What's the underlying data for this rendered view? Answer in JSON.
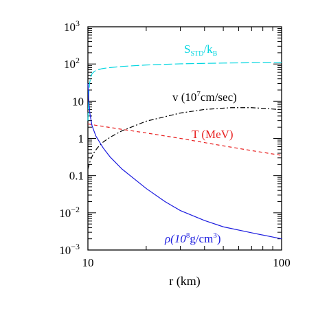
{
  "chart_data": {
    "type": "line",
    "xscale": "log",
    "yscale": "log",
    "xlim": [
      10,
      100
    ],
    "ylim": [
      0.001,
      1000
    ],
    "xlabel": "r (km)",
    "ylabel": "",
    "title": "",
    "grid": false,
    "x_tick_labels": [
      {
        "value": 10,
        "label": "10"
      },
      {
        "value": 100,
        "label": "100"
      }
    ],
    "y_tick_labels": [
      {
        "value": 0.001,
        "base": "10",
        "exp": "−3"
      },
      {
        "value": 0.01,
        "base": "10",
        "exp": "−2"
      },
      {
        "value": 0.1,
        "base": "0.1",
        "exp": ""
      },
      {
        "value": 1,
        "base": "1",
        "exp": ""
      },
      {
        "value": 10,
        "base": "10",
        "exp": ""
      },
      {
        "value": 100,
        "base": "10",
        "exp": "2"
      },
      {
        "value": 1000,
        "base": "10",
        "exp": "3"
      }
    ],
    "series": [
      {
        "key": "entropy",
        "label": {
          "main": "S",
          "sub1": "STD",
          "mid": "/k",
          "sub2": "B"
        },
        "color": "#00d6e0",
        "dash": "long-dash",
        "x": [
          10.0,
          10.1,
          10.2,
          10.35,
          10.5,
          10.75,
          11.0,
          11.5,
          12,
          13,
          15,
          20,
          30,
          50,
          70,
          100
        ],
        "y": [
          3.0,
          15,
          30,
          45,
          55,
          62,
          67,
          72,
          76,
          80,
          86,
          94,
          101,
          106,
          108,
          109
        ]
      },
      {
        "key": "velocity",
        "label": {
          "main": "v  (10",
          "sup": "7",
          "rest": "cm/sec)"
        },
        "color": "#000000",
        "dash": "dash-dot",
        "x": [
          10.0,
          10.3,
          10.7,
          11.2,
          12,
          13,
          15,
          20,
          30,
          40,
          55,
          70,
          85,
          100
        ],
        "y": [
          0.15,
          0.26,
          0.4,
          0.56,
          0.8,
          1.07,
          1.6,
          2.9,
          4.8,
          6.0,
          6.7,
          6.7,
          6.3,
          5.9
        ]
      },
      {
        "key": "temperature",
        "label": {
          "main": "T  (MeV)"
        },
        "color": "#e81e1e",
        "dash": "short-dash",
        "x": [
          10.0,
          10.5,
          11,
          12,
          15,
          20,
          30,
          50,
          70,
          100
        ],
        "y": [
          2.45,
          2.35,
          2.25,
          2.1,
          1.75,
          1.4,
          1.0,
          0.63,
          0.47,
          0.35
        ]
      },
      {
        "key": "density",
        "label": {
          "main": "ρ(10",
          "sup": "8",
          "rest": "g/cm",
          "sup2": "3",
          "end": ")"
        },
        "color": "#1a1adf",
        "dash": "solid",
        "x": [
          10.0,
          10.1,
          10.25,
          10.5,
          11,
          12,
          13,
          15,
          20,
          25,
          30,
          40,
          50,
          70,
          100
        ],
        "y": [
          30,
          10,
          4.5,
          2.2,
          1.15,
          0.55,
          0.32,
          0.15,
          0.045,
          0.02,
          0.0115,
          0.0062,
          0.0042,
          0.0029,
          0.002
        ]
      }
    ]
  }
}
